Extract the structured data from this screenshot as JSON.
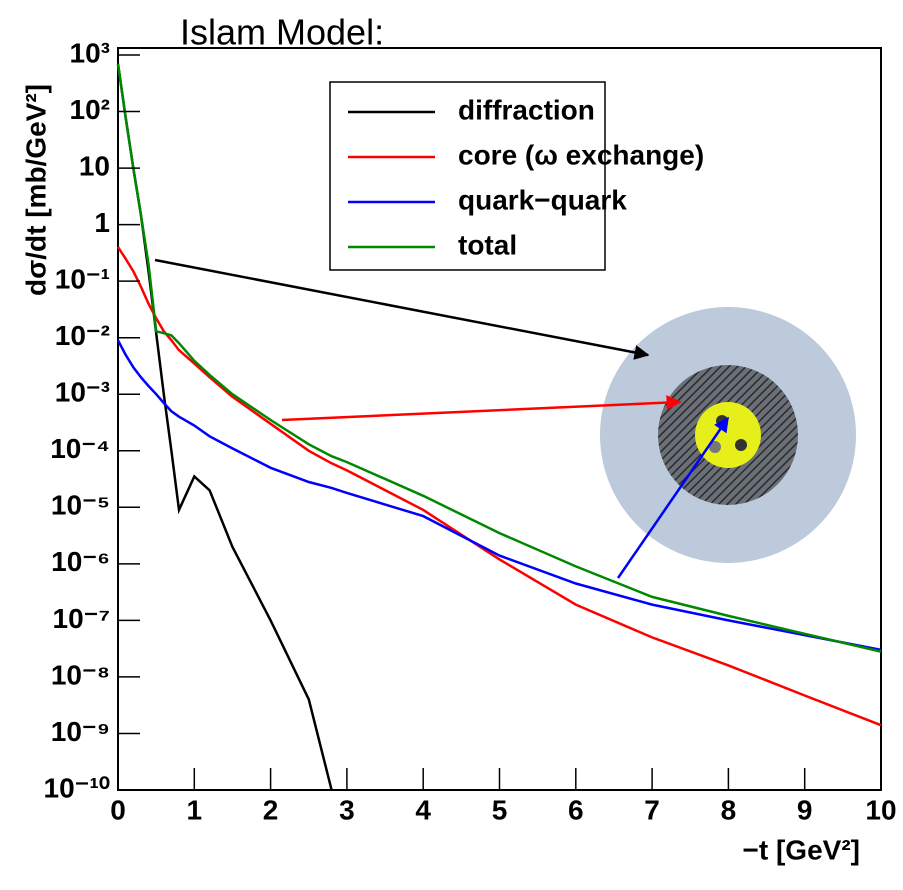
{
  "chart_data": {
    "type": "line",
    "title": "Islam Model:",
    "title_color": "#d62728",
    "xlabel": "−t  [GeV²]",
    "ylabel": "dσ/dt  [mb/GeV²]",
    "log_y": true,
    "xlim": [
      0,
      10
    ],
    "ylim": [
      1e-10,
      1000
    ],
    "xticks": [
      0,
      1,
      2,
      3,
      4,
      5,
      6,
      7,
      8,
      9,
      10
    ],
    "yticks": [
      {
        "value": 1e-10,
        "label": "10⁻¹⁰"
      },
      {
        "value": 1e-09,
        "label": "10⁻⁹"
      },
      {
        "value": 1e-08,
        "label": "10⁻⁸"
      },
      {
        "value": 1e-07,
        "label": "10⁻⁷"
      },
      {
        "value": 1e-06,
        "label": "10⁻⁶"
      },
      {
        "value": 1e-05,
        "label": "10⁻⁵"
      },
      {
        "value": 0.0001,
        "label": "10⁻⁴"
      },
      {
        "value": 0.001,
        "label": "10⁻³"
      },
      {
        "value": 0.01,
        "label": "10⁻²"
      },
      {
        "value": 0.1,
        "label": "10⁻¹"
      },
      1,
      10,
      {
        "value": 100,
        "label": "10²"
      },
      {
        "value": 1000,
        "label": "10³"
      }
    ],
    "x": [
      0,
      0.1,
      0.2,
      0.3,
      0.4,
      0.5,
      0.6,
      0.7,
      0.8,
      1,
      1.2,
      1.5,
      2,
      2.5,
      2.8,
      3,
      4,
      5,
      6,
      7,
      8,
      9,
      10
    ],
    "series": [
      {
        "name": "diffraction",
        "color": "#000000",
        "values": [
          700,
          80,
          10,
          1.5,
          0.15,
          0.012,
          0.001,
          0.0001,
          9e-06,
          3.5e-05,
          2e-05,
          2e-06,
          1e-07,
          4e-09,
          1e-10,
          null,
          null,
          null,
          null,
          null,
          null,
          null,
          null
        ]
      },
      {
        "name": "core (ω exchange)",
        "color": "#ff0000",
        "values": [
          0.4,
          0.25,
          0.15,
          0.08,
          0.04,
          0.022,
          0.013,
          0.009,
          0.006,
          0.0035,
          0.002,
          0.0009,
          0.0003,
          0.0001,
          6e-05,
          4.5e-05,
          9e-06,
          1.2e-06,
          1.9e-07,
          5e-08,
          1.6e-08,
          4.7e-09,
          1.4e-09
        ]
      },
      {
        "name": "quark−quark",
        "color": "#0000ff",
        "values": [
          0.009,
          0.005,
          0.003,
          0.002,
          0.0014,
          0.001,
          0.0007,
          0.0005,
          0.0004,
          0.00028,
          0.00018,
          0.00011,
          5e-05,
          2.8e-05,
          2.2e-05,
          1.8e-05,
          7e-06,
          1.4e-06,
          4.5e-07,
          1.9e-07,
          1e-07,
          5.5e-08,
          3e-08
        ]
      },
      {
        "name": "total",
        "color": "#008800",
        "values": [
          700,
          80,
          10,
          1.5,
          0.2,
          0.013,
          0.012,
          0.011,
          0.008,
          0.0039,
          0.0022,
          0.001,
          0.00035,
          0.00013,
          8e-05,
          6.3e-05,
          1.6e-05,
          3.5e-06,
          9e-07,
          2.6e-07,
          1.2e-07,
          5.8e-08,
          2.8e-08
        ]
      }
    ]
  }
}
